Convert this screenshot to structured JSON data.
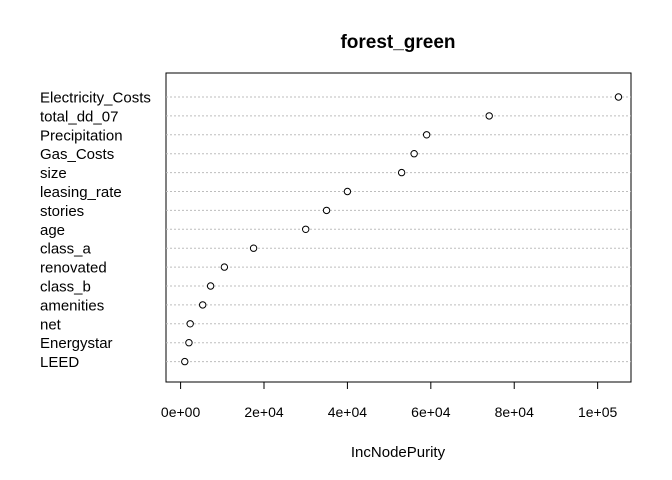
{
  "chart_data": {
    "type": "scatter",
    "title": "forest_green",
    "xlabel": "IncNodePurity",
    "ylabel": "",
    "xlim": [
      -3500,
      108000
    ],
    "x_ticks": [
      0,
      20000,
      40000,
      60000,
      80000,
      100000
    ],
    "x_tick_labels": [
      "0e+00",
      "2e+04",
      "4e+04",
      "6e+04",
      "8e+04",
      "1e+05"
    ],
    "categories": [
      "Electricity_Costs",
      "total_dd_07",
      "Precipitation",
      "Gas_Costs",
      "size",
      "leasing_rate",
      "stories",
      "age",
      "class_a",
      "renovated",
      "class_b",
      "amenities",
      "net",
      "Energystar",
      "LEED"
    ],
    "values": [
      105000,
      74000,
      59000,
      56000,
      53000,
      40000,
      35000,
      30000,
      17500,
      10500,
      7200,
      5300,
      2300,
      2000,
      1000
    ],
    "grid": "dotted horizontal lines per variable",
    "legend": "none"
  }
}
